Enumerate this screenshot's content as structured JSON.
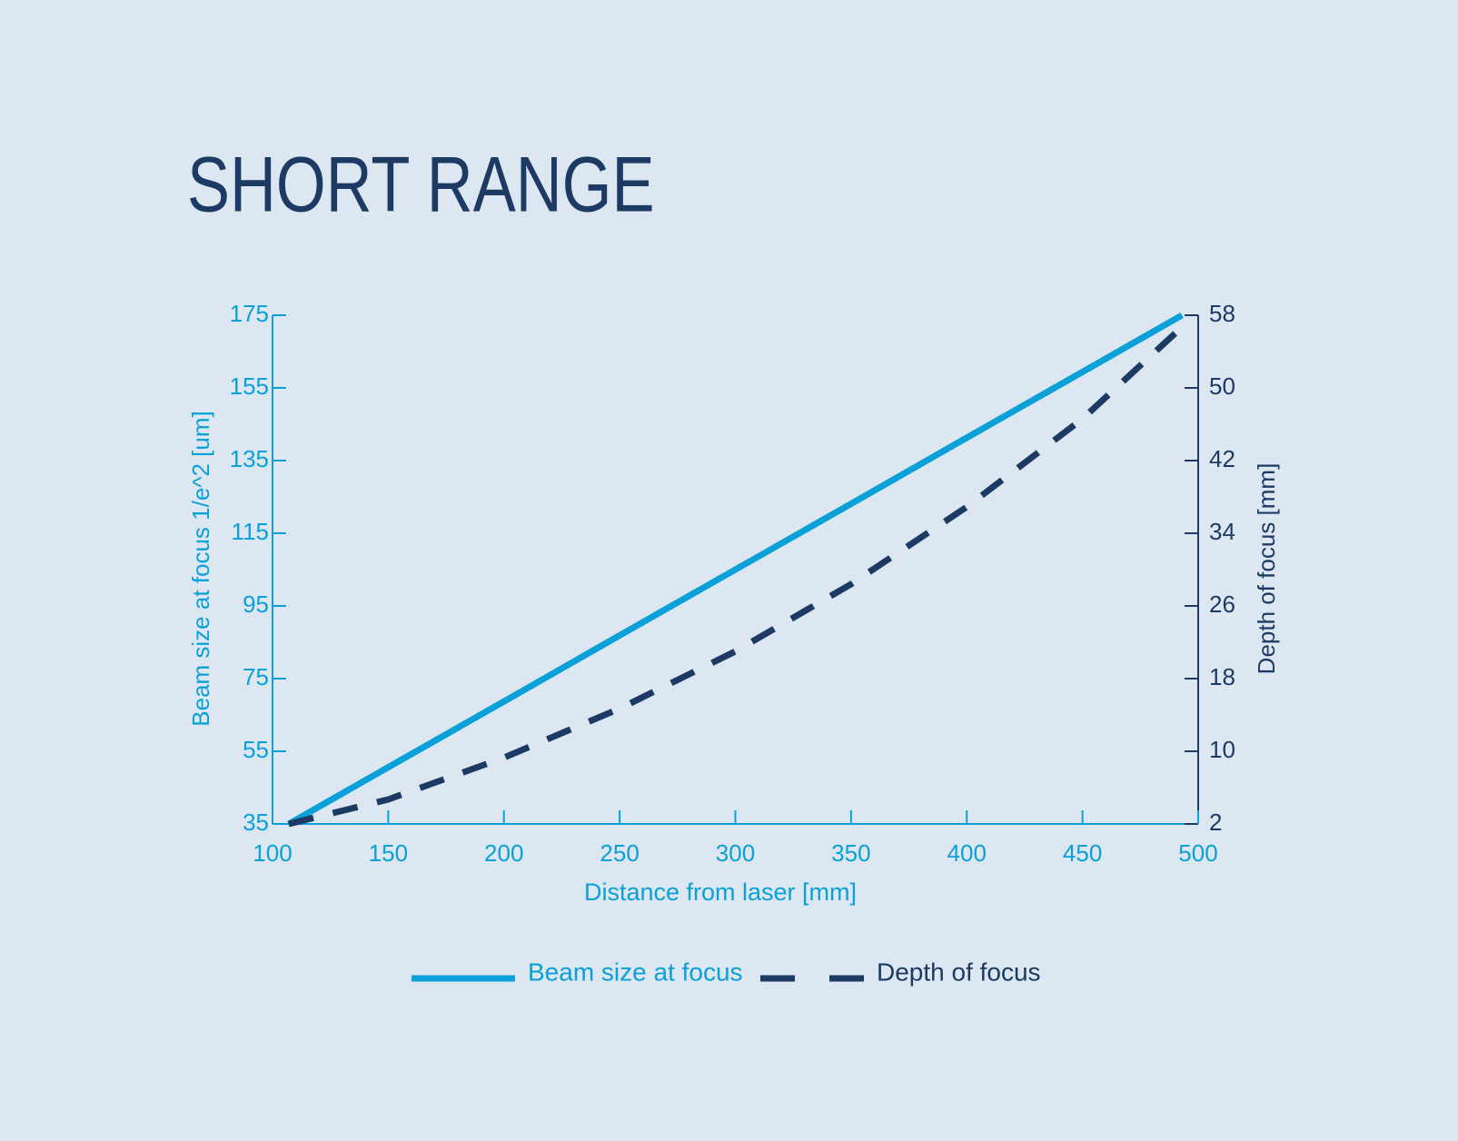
{
  "chart_data": {
    "type": "line",
    "title": "SHORT RANGE",
    "x_label": "Distance from laser [mm]",
    "y_label": "Beam size at focus 1/e^2 [um]",
    "y2_label": "Depth of focus [mm]",
    "x": [
      107,
      150,
      200,
      250,
      300,
      350,
      400,
      450,
      493
    ],
    "series": [
      {
        "name": "Beam size at focus",
        "color": "#0aa0d8",
        "dash": false,
        "values": [
          35,
          50.6,
          68.7,
          86.9,
          105.0,
          123.1,
          141.3,
          159.4,
          175
        ]
      },
      {
        "name": "Depth of focus",
        "color": "#1c3a63",
        "dash": true,
        "axis": "y2",
        "values": [
          2,
          4.7,
          9.3,
          14.7,
          21,
          28.4,
          36.9,
          46.6,
          56.7
        ]
      }
    ],
    "xlim": [
      100,
      500
    ],
    "xticks": [
      100,
      150,
      200,
      250,
      300,
      350,
      400,
      450,
      500
    ],
    "ylim": [
      35,
      175
    ],
    "yticks": [
      35,
      55,
      75,
      95,
      115,
      135,
      155,
      175
    ],
    "y2lim": [
      2,
      58
    ],
    "y2ticks": [
      2,
      10,
      18,
      26,
      34,
      42,
      50,
      58
    ]
  }
}
